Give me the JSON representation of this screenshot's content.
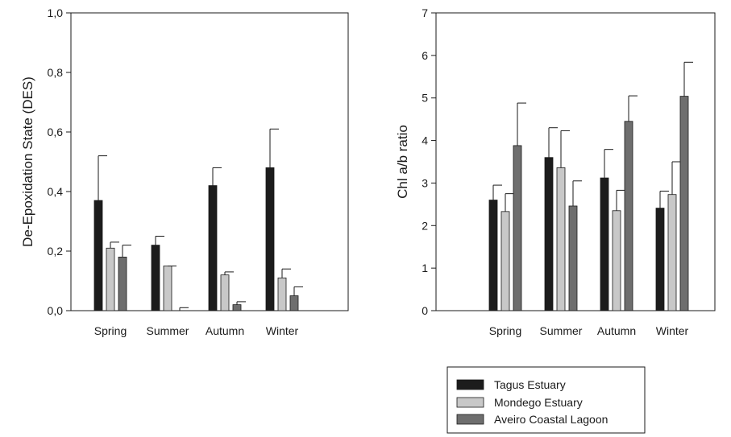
{
  "chart_data": [
    {
      "type": "bar",
      "categories": [
        "Spring",
        "Summer",
        "Autumn",
        "Winter"
      ],
      "ylabel": "De-Epoxidation State (DES)",
      "xlabel": "",
      "ylim": [
        0,
        1.0
      ],
      "yticks": [
        "0,0",
        "0,2",
        "0,4",
        "0,6",
        "0,8",
        "1,0"
      ],
      "ytick_values": [
        0,
        0.2,
        0.4,
        0.6,
        0.8,
        1.0
      ],
      "error_bars": "upper",
      "series": [
        {
          "name": "Tagus Estuary",
          "color": "#1c1c1c",
          "values": [
            0.37,
            0.22,
            0.42,
            0.48
          ],
          "errors": [
            0.15,
            0.03,
            0.06,
            0.13
          ]
        },
        {
          "name": "Mondego Estuary",
          "color": "#c8c8c8",
          "values": [
            0.21,
            0.15,
            0.12,
            0.11
          ],
          "errors": [
            0.02,
            0.0,
            0.01,
            0.03
          ]
        },
        {
          "name": "Aveiro Coastal Lagoon",
          "color": "#6e6e6e",
          "values": [
            0.18,
            0.0,
            0.02,
            0.05
          ],
          "errors": [
            0.04,
            0.01,
            0.01,
            0.03
          ]
        }
      ]
    },
    {
      "type": "bar",
      "categories": [
        "Spring",
        "Summer",
        "Autumn",
        "Winter"
      ],
      "ylabel": "Chl a/b ratio",
      "xlabel": "",
      "ylim": [
        0,
        7
      ],
      "yticks": [
        "0",
        "1",
        "2",
        "3",
        "4",
        "5",
        "6",
        "7"
      ],
      "ytick_values": [
        0,
        1,
        2,
        3,
        4,
        5,
        6,
        7
      ],
      "error_bars": "upper",
      "series": [
        {
          "name": "Tagus Estuary",
          "color": "#1c1c1c",
          "values": [
            2.6,
            3.6,
            3.12,
            2.41
          ],
          "errors": [
            0.35,
            0.7,
            0.67,
            0.4
          ]
        },
        {
          "name": "Mondego Estuary",
          "color": "#c8c8c8",
          "values": [
            2.33,
            3.36,
            2.35,
            2.73
          ],
          "errors": [
            0.42,
            0.87,
            0.48,
            0.77
          ]
        },
        {
          "name": "Aveiro Coastal Lagoon",
          "color": "#6e6e6e",
          "values": [
            3.88,
            2.46,
            4.45,
            5.04
          ],
          "errors": [
            1.0,
            0.59,
            0.6,
            0.8
          ]
        }
      ]
    }
  ],
  "legend": {
    "placement": "bottom-right",
    "items": [
      {
        "label": "Tagus Estuary",
        "color": "#1c1c1c"
      },
      {
        "label": "Mondego Estuary",
        "color": "#c8c8c8"
      },
      {
        "label": "Aveiro Coastal Lagoon",
        "color": "#6e6e6e"
      }
    ]
  }
}
